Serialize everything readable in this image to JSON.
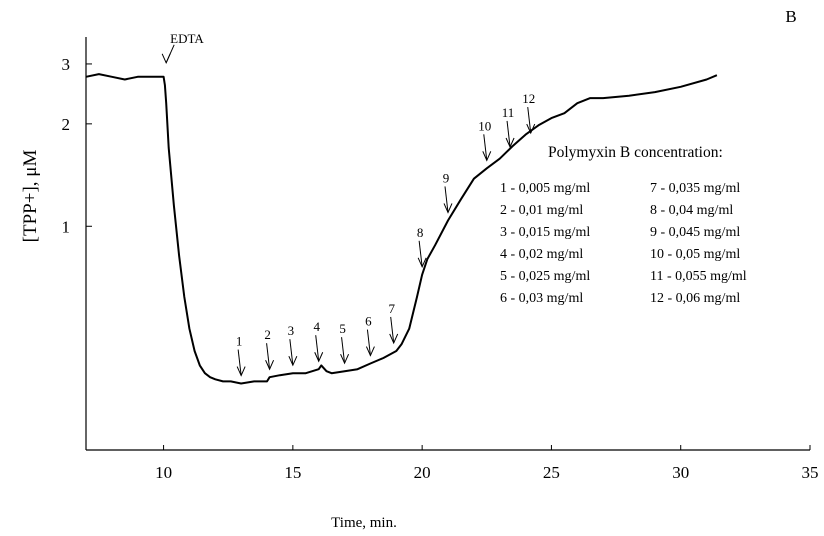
{
  "chart_data": {
    "type": "line",
    "panel_label": "B",
    "xlabel": "Time, min.",
    "ylabel": "[TPP+], μM",
    "xlim": [
      7,
      35
    ],
    "ylim": [
      0.22,
      3.6
    ],
    "y_scale": "log",
    "x_ticks": [
      10,
      15,
      20,
      25,
      30,
      35
    ],
    "y_ticks": [
      1,
      2,
      3
    ],
    "grid": false,
    "series": [
      {
        "x": [
          7.0,
          7.5,
          8.0,
          8.5,
          9.0,
          9.5,
          10.0,
          10.05,
          10.1,
          10.2,
          10.4,
          10.6,
          10.8,
          11.0,
          11.2,
          11.4,
          11.6,
          11.8,
          12.0,
          12.3,
          12.6,
          13.0,
          13.5,
          14.0,
          14.1,
          14.5,
          15.0,
          15.5,
          16.0,
          16.1,
          16.3,
          16.5,
          17.0,
          17.5,
          18.0,
          18.5,
          19.0,
          19.2,
          19.5,
          19.8,
          20.0,
          20.2,
          20.5,
          21.0,
          21.5,
          22.0,
          22.5,
          23.0,
          23.5,
          24.0,
          24.5,
          25.0,
          25.5,
          26.0,
          26.5,
          27.0,
          28.0,
          29.0,
          30.0,
          31.0,
          31.4
        ],
        "y": [
          2.75,
          2.8,
          2.75,
          2.7,
          2.75,
          2.75,
          2.75,
          2.6,
          2.3,
          1.7,
          1.15,
          0.82,
          0.62,
          0.5,
          0.43,
          0.39,
          0.37,
          0.36,
          0.355,
          0.35,
          0.35,
          0.345,
          0.35,
          0.35,
          0.36,
          0.365,
          0.37,
          0.37,
          0.38,
          0.39,
          0.375,
          0.37,
          0.375,
          0.38,
          0.395,
          0.41,
          0.43,
          0.45,
          0.5,
          0.62,
          0.72,
          0.8,
          0.88,
          1.04,
          1.2,
          1.38,
          1.48,
          1.58,
          1.72,
          1.86,
          1.98,
          2.08,
          2.15,
          2.3,
          2.38,
          2.38,
          2.42,
          2.48,
          2.57,
          2.7,
          2.78
        ]
      }
    ],
    "annotations": [
      {
        "label": "EDTA",
        "x": 10.1,
        "y": 2.75
      },
      {
        "label": "1",
        "x": 13.0,
        "y": 0.345
      },
      {
        "label": "2",
        "x": 14.1,
        "y": 0.36
      },
      {
        "label": "3",
        "x": 15.0,
        "y": 0.37
      },
      {
        "label": "4",
        "x": 16.0,
        "y": 0.38
      },
      {
        "label": "5",
        "x": 17.0,
        "y": 0.375
      },
      {
        "label": "6",
        "x": 18.0,
        "y": 0.395
      },
      {
        "label": "7",
        "x": 18.9,
        "y": 0.43
      },
      {
        "label": "8",
        "x": 20.0,
        "y": 0.72
      },
      {
        "label": "9",
        "x": 21.0,
        "y": 1.04
      },
      {
        "label": "10",
        "x": 22.5,
        "y": 1.48
      },
      {
        "label": "11",
        "x": 23.4,
        "y": 1.62
      },
      {
        "label": "12",
        "x": 24.2,
        "y": 1.78
      }
    ],
    "legend_title": "Polymyxin B concentration:",
    "legend": [
      {
        "label": "1 - 0,005 mg/ml"
      },
      {
        "label": "2 - 0,01   mg/ml"
      },
      {
        "label": "3 - 0,015 mg/ml"
      },
      {
        "label": "4 - 0,02   mg/ml"
      },
      {
        "label": "5 - 0,025 mg/ml"
      },
      {
        "label": "6 - 0,03   mg/ml"
      },
      {
        "label": "7 - 0,035   mg/ml"
      },
      {
        "label": "8 - 0,04      mg/ml"
      },
      {
        "label": "9 - 0,045   mg/ml"
      },
      {
        "label": "10 - 0,05    mg/ml"
      },
      {
        "label": "11 - 0,055 mg/ml"
      },
      {
        "label": "12 - 0,06   mg/ml"
      }
    ]
  }
}
